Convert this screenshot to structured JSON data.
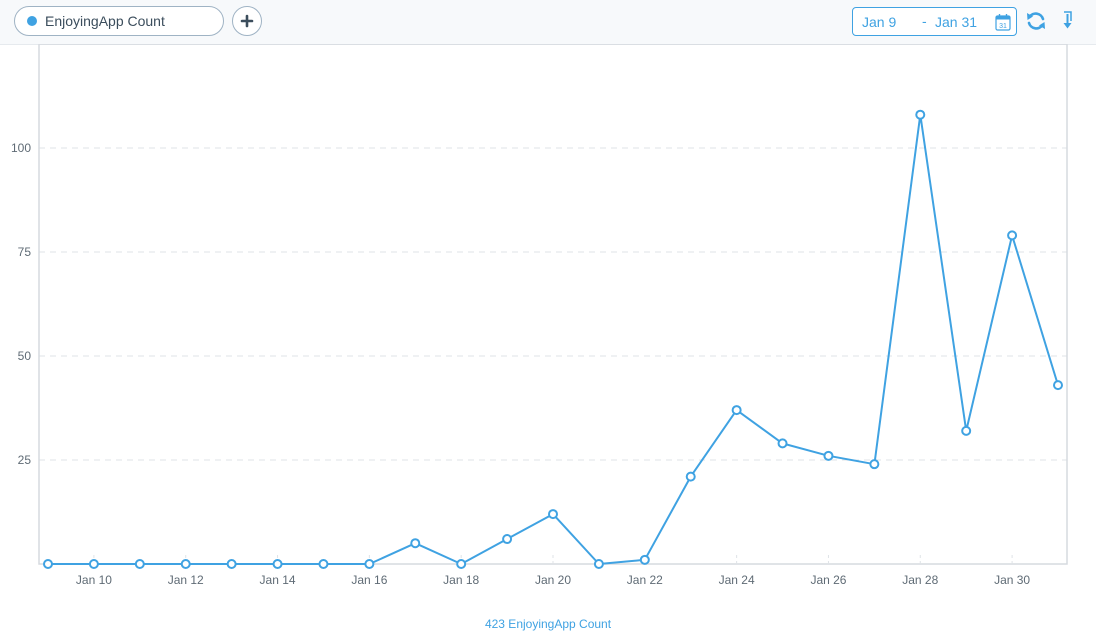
{
  "toolbar": {
    "metric_label": "EnjoyingApp Count",
    "metric_color": "#3fa2e2",
    "date_start": "Jan 9",
    "date_separator": "-",
    "date_end": "Jan 31",
    "calendar_day": "31",
    "add_icon": "plus-icon",
    "calendar_icon": "calendar-icon",
    "refresh_icon": "refresh-icon",
    "export_icon": "export-icon"
  },
  "chart_data": {
    "type": "line",
    "x": [
      "Jan 9",
      "Jan 10",
      "Jan 11",
      "Jan 12",
      "Jan 13",
      "Jan 14",
      "Jan 15",
      "Jan 16",
      "Jan 17",
      "Jan 18",
      "Jan 19",
      "Jan 20",
      "Jan 21",
      "Jan 22",
      "Jan 23",
      "Jan 24",
      "Jan 25",
      "Jan 26",
      "Jan 27",
      "Jan 28",
      "Jan 29",
      "Jan 30",
      "Jan 31"
    ],
    "x_tick_labels": [
      "Jan 10",
      "Jan 12",
      "Jan 14",
      "Jan 16",
      "Jan 18",
      "Jan 20",
      "Jan 22",
      "Jan 24",
      "Jan 26",
      "Jan 28",
      "Jan 30"
    ],
    "y_ticks": [
      25,
      50,
      75,
      100
    ],
    "ylim": [
      0,
      125
    ],
    "grid": "horizontal dashed",
    "series": [
      {
        "values": [
          0,
          0,
          0,
          0,
          0,
          0,
          0,
          0,
          5,
          0,
          6,
          12,
          0,
          1,
          21,
          37,
          29,
          26,
          24,
          108,
          32,
          79,
          43
        ],
        "color": "#3fa2e2"
      }
    ],
    "title": "",
    "xlabel": "",
    "ylabel": ""
  },
  "footer": {
    "total_label": "423 EnjoyingApp Count"
  }
}
